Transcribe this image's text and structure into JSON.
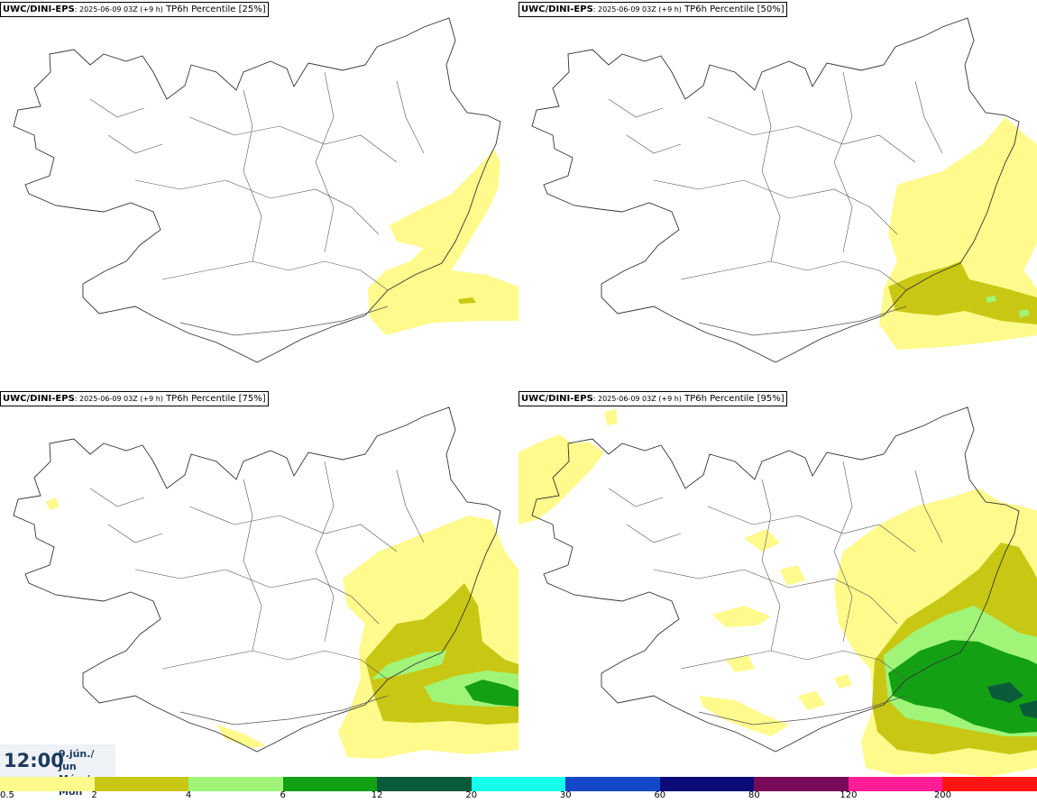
{
  "panels": [
    {
      "model": "UWC/DINI-EPS",
      "run": ": 2025-06-09 03Z (+9 h)",
      "product": " TP6h Percentile [25%]"
    },
    {
      "model": "UWC/DINI-EPS",
      "run": ": 2025-06-09 03Z (+9 h)",
      "product": " TP6h Percentile [50%]"
    },
    {
      "model": "UWC/DINI-EPS",
      "run": ": 2025-06-09 03Z (+9 h)",
      "product": " TP6h Percentile [75%]"
    },
    {
      "model": "UWC/DINI-EPS",
      "run": ": 2025-06-09 03Z (+9 h)",
      "product": " TP6h Percentile [95%]"
    }
  ],
  "valid_time": {
    "hour": "12:00",
    "date_line1": "9.jún./ Jun",
    "date_line2": "Mán./ Mon"
  },
  "colorbar": {
    "colors": [
      "#fffa8c",
      "#c8c814",
      "#a0f578",
      "#14a014",
      "#0a5a3c",
      "#14ffec",
      "#1446c8",
      "#0a0a78",
      "#780a5a",
      "#ff1e96",
      "#ff1414"
    ],
    "labels": [
      "0.5",
      "2",
      "4",
      "6",
      "12",
      "20",
      "30",
      "60",
      "80",
      "120",
      "200"
    ]
  }
}
